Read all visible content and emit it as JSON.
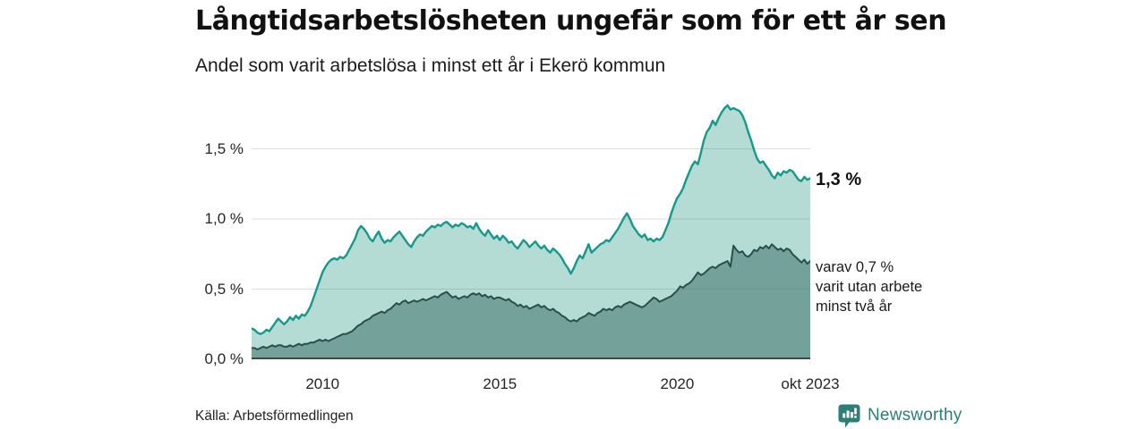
{
  "header": {
    "title": "Långtidsarbetslösheten ungefär som för ett år sen",
    "subtitle": "Andel som varit arbetslösa i minst ett år i Ekerö kommun"
  },
  "annotations": {
    "primary_value": "1,3 %",
    "secondary_lines": [
      "varav 0,7 %",
      "varit utan arbete",
      "minst två år"
    ]
  },
  "footer": {
    "source": "Källa: Arbetsförmedlingen",
    "brand": {
      "name": "Newsworthy",
      "color": "#2E7D76",
      "icon": "newsworthy-bubble-chart-icon"
    }
  },
  "colors": {
    "series1_line": "#17988A",
    "series1_fill": "#B5DBD5",
    "series2_line": "#27504A",
    "series2_fill": "#74A29B",
    "grid_overlay": "rgba(90,100,98,0.22)",
    "axis_line": "#3A4A46",
    "text": "#1A1A1A"
  },
  "chart_data": {
    "type": "area",
    "title": "Långtidsarbetslösheten ungefär som för ett år sen",
    "subtitle": "Andel som varit arbetslösa i minst ett år i Ekerö kommun",
    "unit": "%",
    "x_unit": "months, jan 2008 – okt 2023",
    "x_domain": [
      2008.0,
      2023.75
    ],
    "ylim": [
      0,
      1.86
    ],
    "grid": "horizontal-only",
    "legend": "none (direct labels at line ends)",
    "x_ticks": [
      {
        "pos": 2010.0,
        "label": "2010"
      },
      {
        "pos": 2015.0,
        "label": "2015"
      },
      {
        "pos": 2020.0,
        "label": "2020"
      },
      {
        "pos": 2023.75,
        "label": "okt 2023"
      }
    ],
    "y_ticks": [
      {
        "value": 0.0,
        "label": "0,0 %"
      },
      {
        "value": 0.5,
        "label": "0,5 %"
      },
      {
        "value": 1.0,
        "label": "1,0 %"
      },
      {
        "value": 1.5,
        "label": "1,5 %"
      }
    ],
    "series": [
      {
        "name": "Andel arbetslösa minst ett år",
        "end_label": "1,3 %",
        "line_color": "#17988A",
        "fill_color": "#B5DBD5",
        "line_width": 2.4,
        "values": [
          0.22,
          0.21,
          0.19,
          0.18,
          0.19,
          0.21,
          0.2,
          0.23,
          0.26,
          0.29,
          0.27,
          0.25,
          0.27,
          0.3,
          0.28,
          0.31,
          0.29,
          0.32,
          0.31,
          0.34,
          0.38,
          0.44,
          0.5,
          0.56,
          0.62,
          0.66,
          0.69,
          0.71,
          0.72,
          0.71,
          0.73,
          0.72,
          0.74,
          0.78,
          0.82,
          0.86,
          0.92,
          0.95,
          0.93,
          0.9,
          0.86,
          0.84,
          0.88,
          0.91,
          0.86,
          0.83,
          0.85,
          0.84,
          0.87,
          0.89,
          0.91,
          0.88,
          0.85,
          0.82,
          0.8,
          0.84,
          0.87,
          0.89,
          0.88,
          0.91,
          0.93,
          0.95,
          0.94,
          0.96,
          0.95,
          0.97,
          0.98,
          0.96,
          0.94,
          0.96,
          0.95,
          0.97,
          0.96,
          0.94,
          0.95,
          0.93,
          0.97,
          0.93,
          0.9,
          0.88,
          0.92,
          0.89,
          0.86,
          0.88,
          0.85,
          0.88,
          0.86,
          0.83,
          0.84,
          0.81,
          0.79,
          0.82,
          0.85,
          0.83,
          0.8,
          0.82,
          0.84,
          0.81,
          0.79,
          0.81,
          0.78,
          0.76,
          0.79,
          0.77,
          0.75,
          0.72,
          0.68,
          0.65,
          0.61,
          0.65,
          0.7,
          0.74,
          0.72,
          0.77,
          0.82,
          0.76,
          0.78,
          0.8,
          0.82,
          0.83,
          0.85,
          0.84,
          0.87,
          0.9,
          0.93,
          0.97,
          1.01,
          1.04,
          1.0,
          0.95,
          0.92,
          0.89,
          0.87,
          0.89,
          0.85,
          0.86,
          0.84,
          0.86,
          0.85,
          0.87,
          0.92,
          0.97,
          1.04,
          1.1,
          1.15,
          1.18,
          1.22,
          1.28,
          1.33,
          1.38,
          1.41,
          1.39,
          1.47,
          1.56,
          1.62,
          1.65,
          1.7,
          1.67,
          1.72,
          1.76,
          1.79,
          1.81,
          1.78,
          1.79,
          1.78,
          1.77,
          1.74,
          1.69,
          1.62,
          1.56,
          1.49,
          1.43,
          1.4,
          1.41,
          1.38,
          1.35,
          1.31,
          1.29,
          1.33,
          1.31,
          1.34,
          1.33,
          1.35,
          1.34,
          1.31,
          1.28,
          1.27,
          1.3,
          1.28,
          1.29
        ]
      },
      {
        "name": "varav utan arbete minst två år",
        "end_label": "varav 0,7 % varit utan arbete minst två år",
        "line_color": "#27504A",
        "fill_color": "#74A29B",
        "line_width": 2,
        "values": [
          0.08,
          0.08,
          0.07,
          0.08,
          0.09,
          0.08,
          0.09,
          0.1,
          0.09,
          0.1,
          0.1,
          0.09,
          0.09,
          0.1,
          0.09,
          0.1,
          0.11,
          0.1,
          0.11,
          0.11,
          0.12,
          0.12,
          0.13,
          0.14,
          0.13,
          0.14,
          0.13,
          0.14,
          0.15,
          0.16,
          0.17,
          0.18,
          0.18,
          0.19,
          0.2,
          0.22,
          0.24,
          0.25,
          0.27,
          0.28,
          0.29,
          0.31,
          0.32,
          0.33,
          0.34,
          0.33,
          0.35,
          0.36,
          0.38,
          0.4,
          0.39,
          0.41,
          0.42,
          0.4,
          0.41,
          0.42,
          0.41,
          0.42,
          0.43,
          0.42,
          0.43,
          0.44,
          0.45,
          0.44,
          0.46,
          0.47,
          0.48,
          0.46,
          0.44,
          0.45,
          0.43,
          0.44,
          0.45,
          0.44,
          0.46,
          0.47,
          0.46,
          0.47,
          0.45,
          0.46,
          0.44,
          0.45,
          0.43,
          0.44,
          0.44,
          0.43,
          0.42,
          0.43,
          0.41,
          0.4,
          0.38,
          0.39,
          0.37,
          0.38,
          0.36,
          0.37,
          0.38,
          0.39,
          0.37,
          0.38,
          0.36,
          0.35,
          0.36,
          0.34,
          0.33,
          0.31,
          0.3,
          0.28,
          0.27,
          0.28,
          0.27,
          0.29,
          0.3,
          0.31,
          0.33,
          0.32,
          0.31,
          0.33,
          0.34,
          0.36,
          0.35,
          0.36,
          0.35,
          0.37,
          0.38,
          0.37,
          0.39,
          0.4,
          0.41,
          0.4,
          0.39,
          0.38,
          0.37,
          0.38,
          0.4,
          0.42,
          0.44,
          0.43,
          0.41,
          0.42,
          0.43,
          0.44,
          0.45,
          0.47,
          0.49,
          0.52,
          0.51,
          0.53,
          0.54,
          0.56,
          0.59,
          0.62,
          0.6,
          0.61,
          0.63,
          0.65,
          0.66,
          0.65,
          0.67,
          0.68,
          0.69,
          0.7,
          0.66,
          0.81,
          0.78,
          0.76,
          0.77,
          0.74,
          0.73,
          0.75,
          0.78,
          0.77,
          0.8,
          0.79,
          0.81,
          0.79,
          0.82,
          0.8,
          0.78,
          0.79,
          0.77,
          0.79,
          0.78,
          0.75,
          0.73,
          0.71,
          0.69,
          0.71,
          0.68,
          0.7
        ]
      }
    ]
  }
}
